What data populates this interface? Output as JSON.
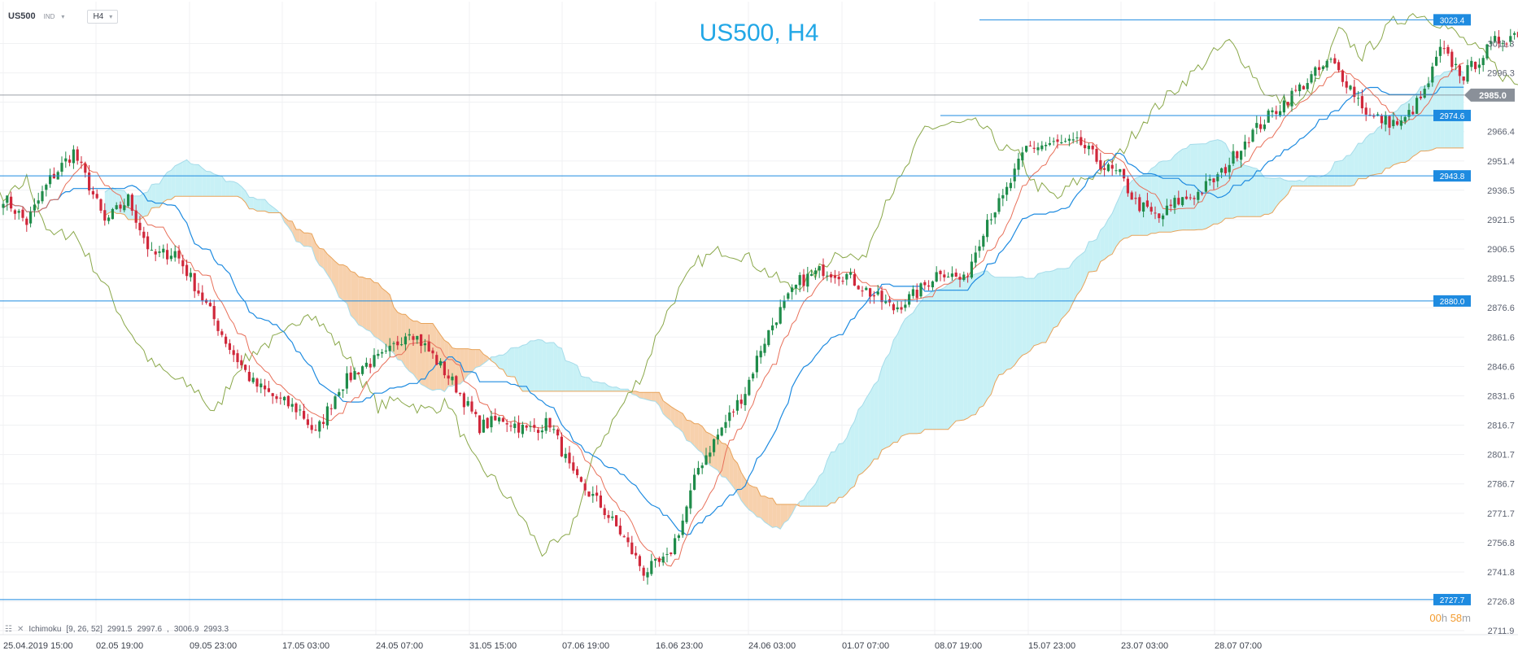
{
  "header": {
    "symbol": "US500",
    "symbol_sub": "IND",
    "timeframe": "H4",
    "chevron": "chevron-down-icon"
  },
  "chart_data": {
    "type": "candlestick",
    "title": "US500, H4",
    "ylim": [
      2709.0,
      3035.0
    ],
    "y_ticks": [
      "3011.3",
      "2996.3",
      "2981.4",
      "2966.4",
      "2951.4",
      "2936.5",
      "2921.5",
      "2906.5",
      "2891.5",
      "2876.6",
      "2861.6",
      "2846.6",
      "2831.6",
      "2816.7",
      "2801.7",
      "2786.7",
      "2771.7",
      "2756.8",
      "2741.8",
      "2726.8",
      "2711.9"
    ],
    "x_ticks": [
      "25.04.2019  15:00",
      "02.05  19:00",
      "09.05  23:00",
      "17.05  03:00",
      "24.05  07:00",
      "31.05  15:00",
      "07.06  19:00",
      "16.06  23:00",
      "24.06  03:00",
      "01.07  07:00",
      "08.07  19:00",
      "15.07  23:00",
      "23.07  03:00",
      "28.07  07:00"
    ],
    "current_price": "2985.0",
    "levels": [
      {
        "value": 3023.4,
        "label": "3023.4",
        "from_bar": 250
      },
      {
        "value": 2974.6,
        "label": "2974.6",
        "from_bar": 240
      },
      {
        "value": 2943.8,
        "label": "2943.8",
        "from_bar": 0
      },
      {
        "value": 2880.0,
        "label": "2880.0",
        "from_bar": 0
      },
      {
        "value": 2727.7,
        "label": "2727.7",
        "from_bar": 0
      }
    ],
    "indicator": {
      "name": "Ichimoku",
      "params": "[9, 26, 52]",
      "values": [
        "2991.5",
        "2997.6",
        "",
        "3006.9",
        "2993.3"
      ]
    },
    "anchors": [
      [
        0,
        2933
      ],
      [
        6,
        2920
      ],
      [
        12,
        2942
      ],
      [
        18,
        2956
      ],
      [
        22,
        2939
      ],
      [
        26,
        2920
      ],
      [
        32,
        2932
      ],
      [
        38,
        2903
      ],
      [
        44,
        2905
      ],
      [
        52,
        2878
      ],
      [
        58,
        2856
      ],
      [
        64,
        2838
      ],
      [
        70,
        2830
      ],
      [
        76,
        2824
      ],
      [
        80,
        2812
      ],
      [
        86,
        2836
      ],
      [
        92,
        2847
      ],
      [
        98,
        2852
      ],
      [
        104,
        2866
      ],
      [
        110,
        2852
      ],
      [
        116,
        2836
      ],
      [
        122,
        2816
      ],
      [
        128,
        2820
      ],
      [
        134,
        2814
      ],
      [
        140,
        2818
      ],
      [
        146,
        2790
      ],
      [
        152,
        2778
      ],
      [
        158,
        2762
      ],
      [
        164,
        2742
      ],
      [
        170,
        2748
      ],
      [
        174,
        2768
      ],
      [
        178,
        2795
      ],
      [
        184,
        2815
      ],
      [
        190,
        2834
      ],
      [
        194,
        2856
      ],
      [
        198,
        2872
      ],
      [
        204,
        2890
      ],
      [
        210,
        2896
      ],
      [
        216,
        2893
      ],
      [
        222,
        2884
      ],
      [
        228,
        2876
      ],
      [
        234,
        2884
      ],
      [
        240,
        2896
      ],
      [
        246,
        2890
      ],
      [
        252,
        2922
      ],
      [
        256,
        2932
      ],
      [
        262,
        2958
      ],
      [
        268,
        2960
      ],
      [
        276,
        2960
      ],
      [
        282,
        2948
      ],
      [
        286,
        2944
      ],
      [
        290,
        2930
      ],
      [
        296,
        2922
      ],
      [
        300,
        2930
      ],
      [
        306,
        2935
      ],
      [
        312,
        2945
      ],
      [
        318,
        2962
      ],
      [
        324,
        2974
      ],
      [
        330,
        2985
      ],
      [
        336,
        2996
      ],
      [
        340,
        3002
      ],
      [
        344,
        2992
      ],
      [
        350,
        2974
      ],
      [
        358,
        2970
      ],
      [
        364,
        2986
      ],
      [
        368,
        3008
      ],
      [
        374,
        2995
      ],
      [
        382,
        3012
      ],
      [
        388,
        3017
      ],
      [
        394,
        3012
      ],
      [
        400,
        3003
      ],
      [
        406,
        2994
      ],
      [
        410,
        2985
      ],
      [
        414,
        2980
      ],
      [
        418,
        2988
      ],
      [
        422,
        2991
      ],
      [
        426,
        2987
      ],
      [
        430,
        2990
      ]
    ],
    "seed": 7
  },
  "footer": {
    "timer_hours": "00",
    "timer_h_unit": "h",
    "timer_minutes": "58",
    "timer_m_unit": "m"
  },
  "colors": {
    "bull": "#1f8c4a",
    "bear": "#d0283b",
    "tenkan": "#e8705a",
    "kijun": "#1e8be0",
    "chikou": "#8aa84a",
    "cloud_bull": "#c8f1f6",
    "cloud_bear": "#f7d1ad",
    "span_a": "#a6dcea",
    "span_b": "#e8a35a",
    "level": "#1e8be0",
    "label_bg": "#1e8be0",
    "price_bg": "#8a9099",
    "grid": "#f0f1f3"
  }
}
